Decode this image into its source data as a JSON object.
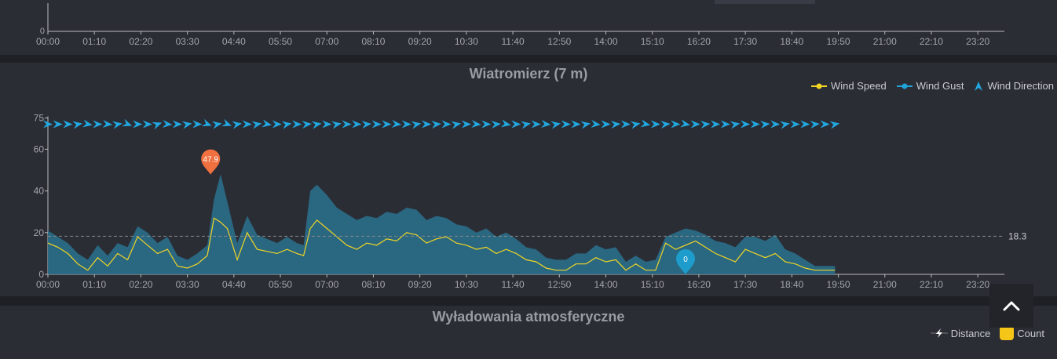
{
  "colors": {
    "wind_speed": "#f1d624",
    "wind_gust": "#1fa3d8",
    "wind_area": "#2a6a86",
    "direction_arrow": "#22a8e0",
    "max_marker": "#f07040",
    "min_marker": "#1e9ccc",
    "grid": "#888888",
    "axis_text": "#a3a5ab"
  },
  "top_chart": {
    "y_tick_label": "0",
    "x_tick_labels": [
      "00:00",
      "01:10",
      "02:20",
      "03:30",
      "04:40",
      "05:50",
      "07:00",
      "08:10",
      "09:20",
      "10:30",
      "11:40",
      "12:50",
      "14:00",
      "15:10",
      "16:20",
      "17:30",
      "18:40",
      "19:50",
      "21:00",
      "22:10",
      "23:20"
    ]
  },
  "wind_chart": {
    "title": "Wiatromierz (7 m)",
    "legend": [
      {
        "label": "Wind Speed",
        "icon": "line-dot-icon"
      },
      {
        "label": "Wind Gust",
        "icon": "line-dot-icon"
      },
      {
        "label": "Wind Direction",
        "icon": "arrow-icon"
      }
    ],
    "avg_label": "18.3",
    "max_marker_label": "47.9",
    "min_marker_label": "0"
  },
  "storm_chart": {
    "title": "Wyładowania atmosferyczne",
    "legend": [
      {
        "label": "Distance",
        "icon": "lightning-icon"
      },
      {
        "label": "Count",
        "icon": "count-swatch-icon"
      }
    ]
  },
  "chart_data": {
    "type": "area",
    "title": "Wiatromierz (7 m)",
    "x_unit": "minutes since 00:00",
    "xlim": [
      0,
      1440
    ],
    "ylim": [
      0,
      75
    ],
    "x_tick_labels": [
      "00:00",
      "01:10",
      "02:20",
      "03:30",
      "04:40",
      "05:50",
      "07:00",
      "08:10",
      "09:20",
      "10:30",
      "11:40",
      "12:50",
      "14:00",
      "15:10",
      "16:20",
      "17:30",
      "18:40",
      "19:50",
      "21:00",
      "22:10",
      "23:20"
    ],
    "y_ticks": [
      0,
      20,
      40,
      60,
      75
    ],
    "average_line": 18.3,
    "max_point": {
      "x": 245,
      "y": 47.9
    },
    "min_point": {
      "x": 960,
      "y": 0
    },
    "series": [
      {
        "name": "Wind Speed",
        "type": "line",
        "x": [
          0,
          15,
          30,
          45,
          60,
          75,
          90,
          105,
          120,
          135,
          150,
          165,
          180,
          195,
          210,
          225,
          240,
          250,
          260,
          270,
          285,
          300,
          315,
          330,
          345,
          360,
          375,
          385,
          395,
          405,
          420,
          435,
          450,
          465,
          480,
          495,
          510,
          525,
          540,
          555,
          570,
          585,
          600,
          615,
          630,
          645,
          660,
          675,
          690,
          705,
          720,
          735,
          750,
          765,
          780,
          795,
          810,
          825,
          840,
          855,
          870,
          885,
          900,
          915,
          930,
          945,
          960,
          975,
          990,
          1005,
          1020,
          1035,
          1050,
          1065,
          1080,
          1095,
          1110,
          1125,
          1140,
          1155,
          1170,
          1185
        ],
        "y": [
          15,
          13,
          10,
          5,
          2,
          8,
          4,
          10,
          7,
          18,
          14,
          10,
          12,
          4,
          3,
          5,
          9,
          27,
          25,
          22,
          7,
          20,
          12,
          11,
          10,
          12,
          10,
          9,
          22,
          26,
          22,
          18,
          14,
          12,
          15,
          14,
          17,
          16,
          20,
          19,
          15,
          17,
          18,
          15,
          14,
          12,
          13,
          10,
          12,
          10,
          7,
          6,
          3,
          2,
          2,
          5,
          5,
          8,
          6,
          7,
          2,
          5,
          2,
          2,
          15,
          12,
          14,
          16,
          13,
          10,
          8,
          6,
          12,
          10,
          8,
          10,
          6,
          5,
          3,
          2,
          2,
          2
        ]
      },
      {
        "name": "Wind Gust",
        "type": "area",
        "x": [
          0,
          15,
          30,
          45,
          60,
          75,
          90,
          105,
          120,
          135,
          150,
          165,
          180,
          195,
          210,
          225,
          240,
          250,
          260,
          270,
          285,
          300,
          315,
          330,
          345,
          360,
          375,
          385,
          395,
          405,
          420,
          435,
          450,
          465,
          480,
          495,
          510,
          525,
          540,
          555,
          570,
          585,
          600,
          615,
          630,
          645,
          660,
          675,
          690,
          705,
          720,
          735,
          750,
          765,
          780,
          795,
          810,
          825,
          840,
          855,
          870,
          885,
          900,
          915,
          930,
          945,
          960,
          975,
          990,
          1005,
          1020,
          1035,
          1050,
          1065,
          1080,
          1095,
          1110,
          1125,
          1140,
          1155,
          1170,
          1185
        ],
        "y": [
          21,
          18,
          15,
          10,
          7,
          14,
          9,
          15,
          13,
          23,
          20,
          15,
          18,
          9,
          7,
          10,
          14,
          36,
          48,
          35,
          15,
          28,
          19,
          17,
          15,
          18,
          15,
          14,
          40,
          43,
          38,
          32,
          29,
          26,
          28,
          27,
          30,
          29,
          32,
          31,
          26,
          28,
          27,
          24,
          23,
          20,
          22,
          18,
          20,
          17,
          13,
          12,
          8,
          7,
          7,
          10,
          10,
          14,
          12,
          13,
          6,
          9,
          6,
          7,
          18,
          20,
          22,
          21,
          19,
          16,
          15,
          13,
          18,
          18,
          16,
          19,
          12,
          10,
          7,
          4,
          4,
          4
        ]
      },
      {
        "name": "Wind Direction",
        "type": "arrows",
        "y": 72,
        "x": [
          0,
          15,
          30,
          45,
          60,
          75,
          90,
          105,
          120,
          135,
          150,
          165,
          180,
          195,
          210,
          225,
          240,
          255,
          270,
          285,
          300,
          315,
          330,
          345,
          360,
          375,
          390,
          405,
          420,
          435,
          450,
          465,
          480,
          495,
          510,
          525,
          540,
          555,
          570,
          585,
          600,
          615,
          630,
          645,
          660,
          675,
          690,
          705,
          720,
          735,
          750,
          765,
          780,
          795,
          810,
          825,
          840,
          855,
          870,
          885,
          900,
          915,
          930,
          945,
          960,
          975,
          990,
          1005,
          1020,
          1035,
          1050,
          1065,
          1080,
          1095,
          1110,
          1125,
          1140,
          1155,
          1170,
          1185
        ],
        "direction_deg": [
          90,
          90,
          90,
          80,
          100,
          90,
          95,
          80,
          110,
          90,
          90,
          70,
          95,
          90,
          80,
          90,
          110,
          80,
          110,
          80,
          90,
          80,
          100,
          90,
          80,
          90,
          85,
          80,
          90,
          80,
          90,
          90,
          85,
          90,
          90,
          95,
          90,
          80,
          90,
          85,
          90,
          80,
          90,
          95,
          90,
          85,
          100,
          90,
          80,
          90,
          95,
          80,
          90,
          90,
          80,
          95,
          90,
          85,
          90,
          80,
          100,
          90,
          85,
          90,
          100,
          90,
          85,
          90,
          90,
          80,
          90,
          90,
          85,
          90,
          80,
          90,
          90,
          85,
          90,
          80
        ]
      }
    ]
  }
}
